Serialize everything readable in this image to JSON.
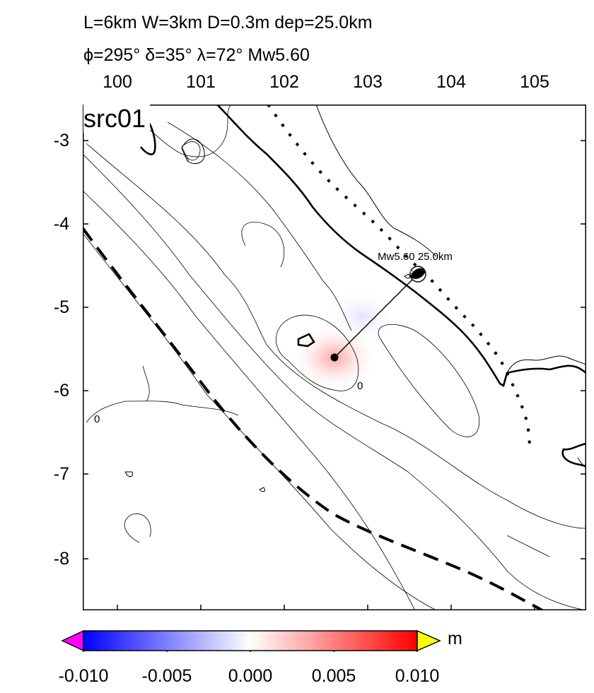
{
  "title": {
    "line1": "L=6km W=3km D=0.3m dep=25.0km",
    "line2": "ϕ=295° δ=35° λ=72° Mw5.60"
  },
  "source_label": "src01",
  "x_ticks": [
    "100",
    "101",
    "102",
    "103",
    "104",
    "105"
  ],
  "y_ticks": [
    "-3",
    "-4",
    "-5",
    "-6",
    "-7",
    "-8"
  ],
  "event_label": "Mw5.60 25.0km",
  "contour_labels": [
    "0",
    "0"
  ],
  "colorbar": {
    "ticks": [
      "-0.010",
      "-0.005",
      "0.000",
      "0.005",
      "0.010"
    ],
    "unit": "m",
    "range": [
      -0.01,
      0.01
    ],
    "colors": {
      "low": "#0000ff",
      "mid": "#ffffff",
      "high": "#ff0000",
      "under": "#ff00ff",
      "over": "#ffff00"
    }
  },
  "map_extent": {
    "lon": [
      99.6,
      105.6
    ],
    "lat": [
      -8.6,
      -2.6
    ]
  },
  "epicenter": {
    "lon": 103.6,
    "lat": -4.6
  },
  "centroid": {
    "lon": 102.6,
    "lat": -5.6
  }
}
